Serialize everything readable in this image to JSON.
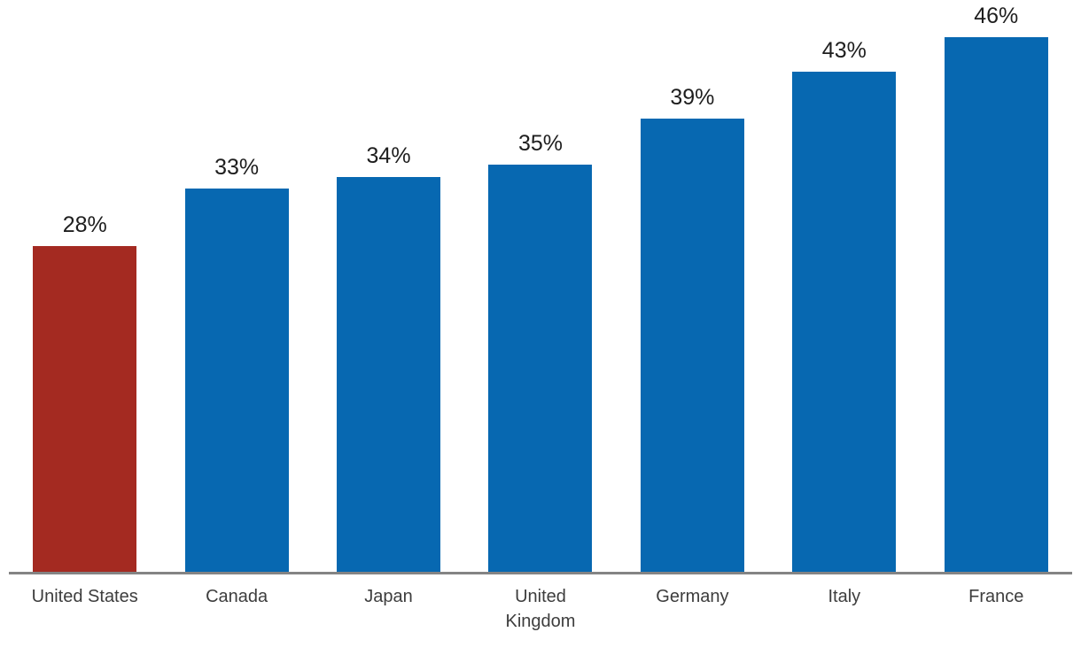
{
  "chart_data": {
    "type": "bar",
    "title": "",
    "xlabel": "",
    "ylabel": "",
    "categories": [
      "United States",
      "Canada",
      "Japan",
      "United Kingdom",
      "Germany",
      "Italy",
      "France"
    ],
    "values": [
      28,
      33,
      34,
      35,
      39,
      43,
      46
    ],
    "value_labels": [
      "28%",
      "33%",
      "34%",
      "35%",
      "39%",
      "43%",
      "46%"
    ],
    "unit": "%",
    "ylim": [
      0,
      46
    ],
    "grid": false,
    "legend": false,
    "y_axis_visible": false,
    "highlight_index": 0,
    "colors": {
      "default_bar": "#0768B1",
      "highlight_bar": "#A42A21",
      "axis_line": "#848484",
      "value_label_text": "#1E1E1E",
      "category_label_text": "#3D3D3D",
      "background": "#FFFFFF"
    }
  }
}
